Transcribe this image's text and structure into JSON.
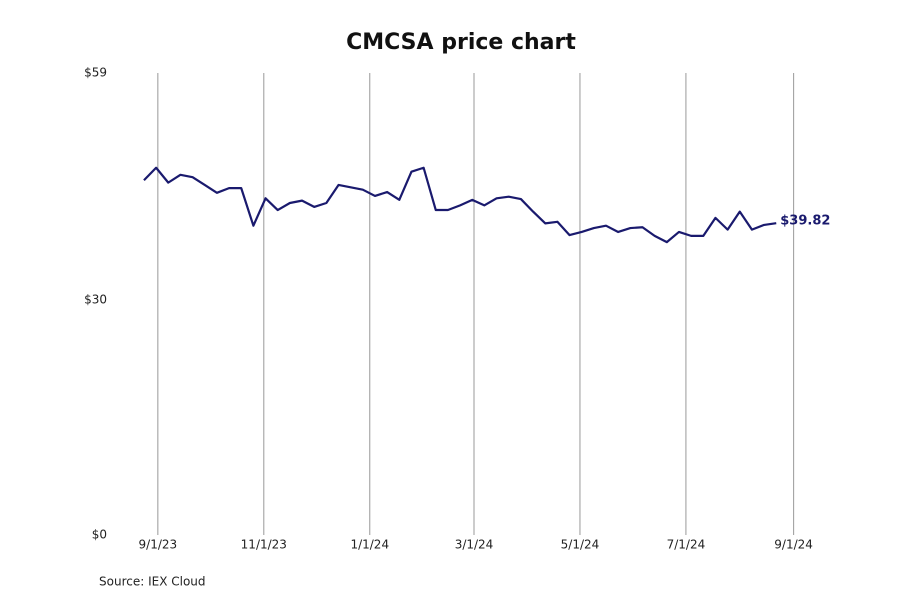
{
  "chart_data": {
    "type": "line",
    "title": "CMCSA price chart",
    "source": "Source: IEX Cloud",
    "x": [
      "8/24/23",
      "8/31/23",
      "9/7/23",
      "9/14/23",
      "9/21/23",
      "9/28/23",
      "10/5/23",
      "10/12/23",
      "10/19/23",
      "10/26/23",
      "11/2/23",
      "11/9/23",
      "11/16/23",
      "11/23/23",
      "11/30/23",
      "12/7/23",
      "12/14/23",
      "12/21/23",
      "12/28/23",
      "1/4/24",
      "1/11/24",
      "1/18/24",
      "1/25/24",
      "2/1/24",
      "2/8/24",
      "2/15/24",
      "2/22/24",
      "2/29/24",
      "3/7/24",
      "3/14/24",
      "3/21/24",
      "3/28/24",
      "4/4/24",
      "4/11/24",
      "4/18/24",
      "4/25/24",
      "5/2/24",
      "5/9/24",
      "5/16/24",
      "5/23/24",
      "5/30/24",
      "6/6/24",
      "6/13/24",
      "6/20/24",
      "6/27/24",
      "7/4/24",
      "7/11/24",
      "7/18/24",
      "7/25/24",
      "8/1/24",
      "8/8/24",
      "8/15/24",
      "8/22/24"
    ],
    "series": [
      {
        "name": "CMCSA",
        "color": "#1a1a6e",
        "values": [
          45.3,
          46.9,
          45.0,
          46.0,
          45.7,
          44.7,
          43.7,
          44.3,
          44.3,
          39.5,
          43.0,
          41.5,
          42.4,
          42.7,
          41.9,
          42.4,
          44.7,
          44.4,
          44.1,
          43.3,
          43.8,
          42.8,
          46.4,
          46.9,
          41.5,
          41.5,
          42.1,
          42.8,
          42.1,
          43.0,
          43.2,
          42.9,
          41.3,
          39.8,
          40.0,
          38.3,
          38.7,
          39.2,
          39.5,
          38.7,
          39.2,
          39.3,
          38.2,
          37.4,
          38.7,
          38.2,
          38.2,
          40.5,
          39.0,
          41.3,
          39.0,
          39.6,
          39.82
        ],
        "value_labels": [
          null,
          null,
          null,
          null,
          null,
          null,
          null,
          null,
          null,
          null,
          null,
          null,
          null,
          null,
          null,
          null,
          null,
          null,
          null,
          null,
          null,
          null,
          null,
          null,
          null,
          null,
          null,
          null,
          null,
          null,
          null,
          null,
          null,
          null,
          null,
          null,
          null,
          null,
          null,
          null,
          null,
          null,
          null,
          null,
          null,
          null,
          null,
          null,
          null,
          null,
          null,
          null,
          "$39.82"
        ]
      }
    ],
    "xlim": [
      "8/1/23",
      "9/30/24"
    ],
    "xticks": [
      "9/1/23",
      "11/1/23",
      "1/1/24",
      "3/1/24",
      "5/1/24",
      "7/1/24",
      "9/1/24"
    ],
    "ylim": [
      0,
      59
    ],
    "yticks": [
      {
        "value": 0,
        "label": "$0"
      },
      {
        "value": 30,
        "label": "$30"
      },
      {
        "value": 59,
        "label": "$59"
      }
    ],
    "grid": true
  }
}
